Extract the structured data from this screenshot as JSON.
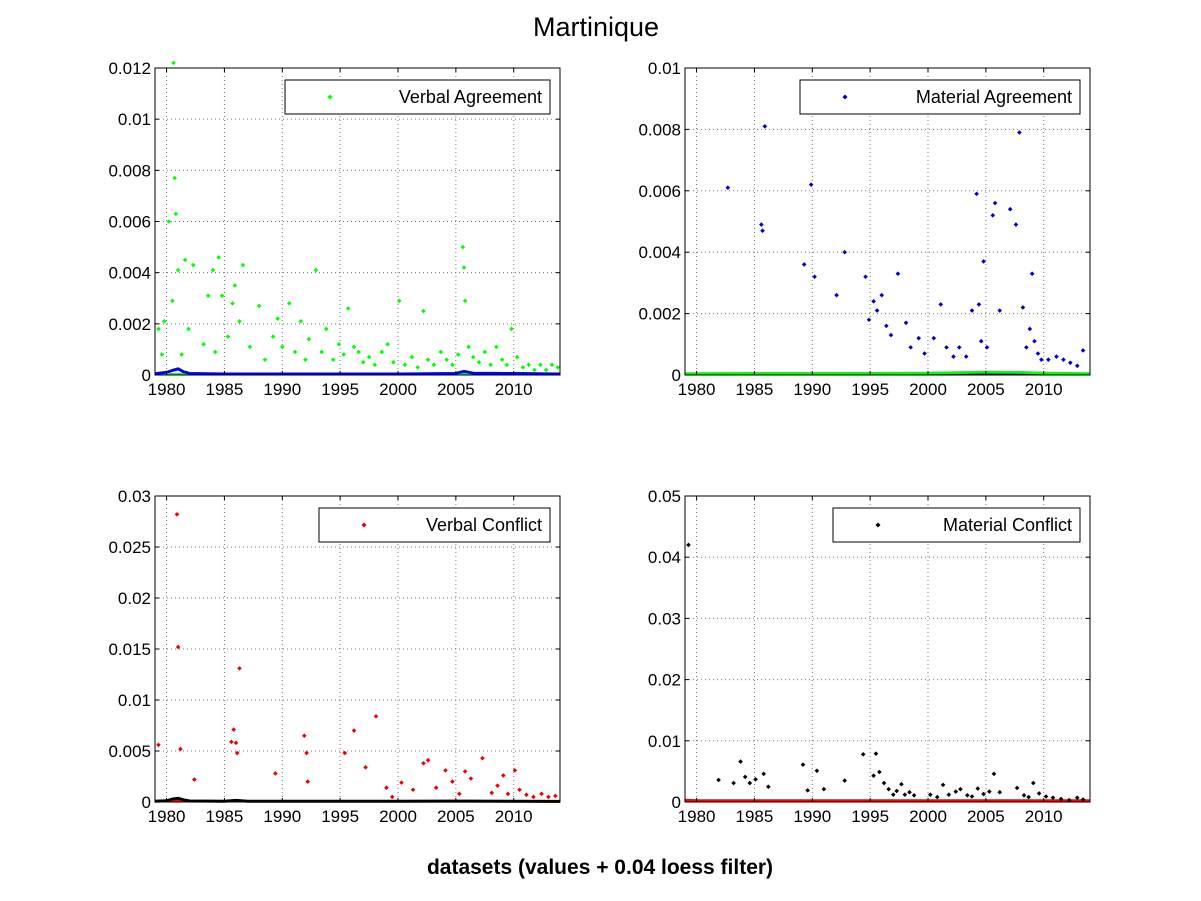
{
  "figure": {
    "title": "Martinique",
    "xlabel": "datasets (values + 0.04 loess filter)"
  },
  "chart_data": [
    {
      "type": "scatter",
      "legend": "Verbal Agreement",
      "legend_position": "top-right",
      "grid": true,
      "xlim": [
        1979,
        2014
      ],
      "ylim": [
        0,
        0.012
      ],
      "xticks": [
        1980,
        1985,
        1990,
        1995,
        2000,
        2005,
        2010
      ],
      "yticks": [
        "0",
        "0.002",
        "0.004",
        "0.006",
        "0.008",
        "0.01",
        "0.012"
      ],
      "marker_color": "#00ff00",
      "smooth_color": "#0000ff",
      "x": [
        1979.3,
        1979.6,
        1979.8,
        1980.2,
        1980.5,
        1980.6,
        1980.7,
        1980.8,
        1981.0,
        1981.3,
        1981.6,
        1981.9,
        1982.3,
        1983.2,
        1983.6,
        1984.0,
        1984.2,
        1984.5,
        1984.8,
        1985.3,
        1985.7,
        1985.9,
        1986.3,
        1986.6,
        1987.2,
        1988.0,
        1988.5,
        1989.2,
        1989.6,
        1990.0,
        1990.6,
        1991.1,
        1991.6,
        1992.0,
        1992.3,
        1992.9,
        1993.4,
        1993.8,
        1994.4,
        1994.9,
        1995.3,
        1995.7,
        1996.2,
        1996.6,
        1997.0,
        1997.5,
        1998.0,
        1998.6,
        1999.1,
        1999.6,
        2000.1,
        2000.6,
        2001.2,
        2001.7,
        2002.2,
        2002.6,
        2003.1,
        2003.7,
        2004.2,
        2004.7,
        2005.2,
        2005.6,
        2005.7,
        2005.8,
        2006.1,
        2006.5,
        2007.0,
        2007.5,
        2008.0,
        2008.5,
        2009.0,
        2009.4,
        2009.8,
        2010.3,
        2010.8,
        2011.3,
        2011.8,
        2012.3,
        2012.8,
        2013.3,
        2013.8
      ],
      "y": [
        0.0018,
        0.0008,
        0.0021,
        0.006,
        0.0029,
        0.0122,
        0.0077,
        0.0063,
        0.0041,
        0.0008,
        0.0045,
        0.0018,
        0.0043,
        0.0012,
        0.0031,
        0.0041,
        0.0009,
        0.0046,
        0.0031,
        0.0015,
        0.0028,
        0.0035,
        0.0021,
        0.0043,
        0.0011,
        0.0027,
        0.0006,
        0.0015,
        0.0022,
        0.0011,
        0.0028,
        0.0009,
        0.0021,
        0.0006,
        0.0014,
        0.0041,
        0.0009,
        0.0018,
        0.0006,
        0.0012,
        0.0008,
        0.0026,
        0.0011,
        0.0009,
        0.0005,
        0.0007,
        0.0004,
        0.0009,
        0.0012,
        0.0005,
        0.0029,
        0.0004,
        0.0007,
        0.0003,
        0.0025,
        0.0006,
        0.0004,
        0.0009,
        0.0006,
        0.0004,
        0.0008,
        0.005,
        0.0042,
        0.0029,
        0.0011,
        0.0007,
        0.0005,
        0.0009,
        0.0004,
        0.0011,
        0.0006,
        0.0004,
        0.0018,
        0.0007,
        0.0003,
        0.0004,
        0.0002,
        0.0004,
        0.0002,
        0.0004,
        0.0003
      ],
      "smooth_x": [
        1979,
        1980,
        1980.5,
        1981,
        1981.5,
        1982,
        1985,
        1990,
        1995,
        2000,
        2005,
        2005.7,
        2006.5,
        2010,
        2014
      ],
      "smooth_y": [
        5e-05,
        0.0001,
        0.00018,
        0.00024,
        0.00012,
        6e-05,
        4e-05,
        4e-05,
        4e-05,
        4e-05,
        6e-05,
        0.00014,
        7e-05,
        6e-05,
        4e-05
      ]
    },
    {
      "type": "scatter",
      "legend": "Material Agreement",
      "legend_position": "top-right",
      "grid": true,
      "xlim": [
        1979,
        2014
      ],
      "ylim": [
        0,
        0.01
      ],
      "xticks": [
        1980,
        1985,
        1990,
        1995,
        2000,
        2005,
        2010
      ],
      "yticks": [
        "0",
        "0.002",
        "0.004",
        "0.006",
        "0.008",
        "0.01"
      ],
      "marker_color": "#0000cc",
      "smooth_color": "#00ff00",
      "x": [
        1982.7,
        1985.6,
        1985.7,
        1985.9,
        1989.3,
        1989.9,
        1990.2,
        1992.1,
        1992.8,
        1994.6,
        1994.9,
        1995.3,
        1995.6,
        1996.0,
        1996.4,
        1996.8,
        1997.4,
        1998.1,
        1998.5,
        1999.2,
        1999.7,
        2000.5,
        2001.1,
        2001.6,
        2002.2,
        2002.7,
        2003.3,
        2003.8,
        2004.2,
        2004.4,
        2004.6,
        2004.8,
        2005.1,
        2005.6,
        2005.8,
        2006.2,
        2007.1,
        2007.6,
        2007.9,
        2008.2,
        2008.5,
        2008.8,
        2009.0,
        2009.2,
        2009.5,
        2009.8,
        2010.4,
        2011.1,
        2011.7,
        2012.3,
        2012.9,
        2013.4
      ],
      "y": [
        0.0061,
        0.0049,
        0.0047,
        0.0081,
        0.0036,
        0.0062,
        0.0032,
        0.0026,
        0.004,
        0.0032,
        0.0018,
        0.0024,
        0.0021,
        0.0026,
        0.0016,
        0.0013,
        0.0033,
        0.0017,
        0.0009,
        0.0012,
        0.0007,
        0.0012,
        0.0023,
        0.0009,
        0.0006,
        0.0009,
        0.0006,
        0.0021,
        0.0059,
        0.0023,
        0.0011,
        0.0037,
        0.0009,
        0.0052,
        0.0056,
        0.0021,
        0.0054,
        0.0049,
        0.0079,
        0.0022,
        0.0009,
        0.0015,
        0.0033,
        0.0011,
        0.0007,
        0.0005,
        0.0005,
        0.0006,
        0.0005,
        0.0004,
        0.0003,
        0.0008
      ],
      "smooth_x": [
        1979,
        1985,
        1990,
        1995,
        2000,
        2005,
        2008,
        2010,
        2014
      ],
      "smooth_y": [
        4e-05,
        5e-05,
        5e-05,
        5e-05,
        6e-05,
        9e-05,
        8e-05,
        6e-05,
        4e-05
      ]
    },
    {
      "type": "scatter",
      "legend": "Verbal Conflict",
      "legend_position": "top-right",
      "grid": true,
      "xlim": [
        1979,
        2014
      ],
      "ylim": [
        0,
        0.03
      ],
      "xticks": [
        1980,
        1985,
        1990,
        1995,
        2000,
        2005,
        2010
      ],
      "yticks": [
        "0",
        "0.005",
        "0.01",
        "0.015",
        "0.02",
        "0.025",
        "0.03"
      ],
      "marker_color": "#ee0000",
      "smooth_color": "#000000",
      "x": [
        1979.3,
        1980.9,
        1981.0,
        1981.2,
        1982.4,
        1985.6,
        1985.8,
        1986.0,
        1986.1,
        1986.3,
        1989.4,
        1991.9,
        1992.1,
        1992.2,
        1995.4,
        1996.2,
        1997.2,
        1998.1,
        1999.0,
        1999.5,
        2000.3,
        2001.3,
        2002.2,
        2002.6,
        2003.3,
        2004.1,
        2004.7,
        2005.3,
        2005.8,
        2006.3,
        2007.3,
        2008.1,
        2008.6,
        2009.1,
        2009.5,
        2010.1,
        2010.5,
        2011.1,
        2011.7,
        2012.4,
        2013.0,
        2013.6
      ],
      "y": [
        0.0056,
        0.0282,
        0.0152,
        0.0052,
        0.0022,
        0.0059,
        0.0071,
        0.0058,
        0.0048,
        0.0131,
        0.0028,
        0.0065,
        0.0048,
        0.002,
        0.0048,
        0.007,
        0.0034,
        0.0084,
        0.0014,
        0.0005,
        0.0019,
        0.0012,
        0.0038,
        0.0041,
        0.0014,
        0.0031,
        0.002,
        0.0008,
        0.003,
        0.0023,
        0.0043,
        0.0009,
        0.0016,
        0.0026,
        0.0008,
        0.0031,
        0.0012,
        0.0007,
        0.0005,
        0.0008,
        0.0005,
        0.0006
      ],
      "smooth_x": [
        1979,
        1980,
        1980.5,
        1981,
        1981.5,
        1982,
        1985,
        1986,
        1987,
        1990,
        1995,
        2000,
        2005,
        2010,
        2014
      ],
      "smooth_y": [
        8e-05,
        0.00012,
        0.00028,
        0.00036,
        0.0002,
        0.0001,
        8e-05,
        0.00016,
        8e-05,
        7e-05,
        8e-05,
        8e-05,
        9e-05,
        8e-05,
        6e-05
      ]
    },
    {
      "type": "scatter",
      "legend": "Material Conflict",
      "legend_position": "top-right",
      "grid": true,
      "xlim": [
        1979,
        2014
      ],
      "ylim": [
        0,
        0.05
      ],
      "xticks": [
        1980,
        1985,
        1990,
        1995,
        2000,
        2005,
        2010
      ],
      "yticks": [
        "0",
        "0.01",
        "0.02",
        "0.03",
        "0.04",
        "0.05"
      ],
      "marker_color": "#000000",
      "smooth_color": "#ff0000",
      "x": [
        1979.3,
        1981.9,
        1983.2,
        1983.8,
        1984.2,
        1984.6,
        1985.1,
        1985.8,
        1986.2,
        1989.2,
        1989.6,
        1990.4,
        1991.0,
        1992.8,
        1994.4,
        1995.3,
        1995.5,
        1995.8,
        1996.2,
        1996.6,
        1997.0,
        1997.3,
        1997.7,
        1998.0,
        1998.4,
        1998.8,
        2000.2,
        2000.8,
        2001.3,
        2001.8,
        2002.4,
        2002.8,
        2003.4,
        2003.8,
        2004.3,
        2004.8,
        2005.3,
        2005.7,
        2006.2,
        2007.7,
        2008.3,
        2008.7,
        2009.1,
        2009.6,
        2010.2,
        2010.8,
        2011.5,
        2012.2,
        2012.9,
        2013.4
      ],
      "y": [
        0.042,
        0.0036,
        0.0031,
        0.0066,
        0.0041,
        0.0031,
        0.0037,
        0.0046,
        0.0025,
        0.0061,
        0.0019,
        0.0051,
        0.0021,
        0.0035,
        0.0078,
        0.0043,
        0.0079,
        0.0049,
        0.0031,
        0.0021,
        0.0012,
        0.0018,
        0.0029,
        0.0012,
        0.0016,
        0.0011,
        0.0012,
        0.0008,
        0.0028,
        0.0012,
        0.0017,
        0.0021,
        0.0011,
        0.0009,
        0.0022,
        0.0013,
        0.0017,
        0.0046,
        0.0016,
        0.0023,
        0.0011,
        0.0008,
        0.0031,
        0.0014,
        0.0009,
        0.0007,
        0.0005,
        0.0003,
        0.0007,
        0.0004
      ],
      "smooth_x": [
        1979,
        1980,
        1985,
        1990,
        1995,
        2000,
        2005,
        2010,
        2014
      ],
      "smooth_y": [
        0.0003,
        0.0002,
        0.0002,
        0.0002,
        0.0002,
        0.0002,
        0.0002,
        0.0002,
        0.0002
      ]
    }
  ]
}
